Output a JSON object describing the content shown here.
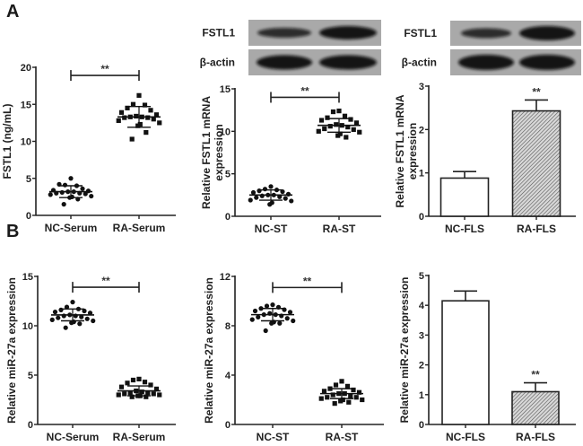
{
  "panels": [
    {
      "label": "A"
    },
    {
      "label": "B"
    }
  ],
  "blots": [
    {
      "rows": [
        "FSTL1",
        "β-actin"
      ]
    },
    {
      "rows": [
        "FSTL1",
        "β-actin"
      ]
    }
  ],
  "chart_data": [
    {
      "id": "A1",
      "type": "scatter",
      "ylabel": "FSTL1 (ng/mL)",
      "categories": [
        "NC-Serum",
        "RA-Serum"
      ],
      "ylim": [
        0,
        20
      ],
      "yticks": [
        0,
        5,
        10,
        15,
        20
      ],
      "series": [
        {
          "name": "NC-Serum",
          "marker": "circle",
          "mean": 3.2,
          "sd": 0.8,
          "values": [
            5.0,
            4.1,
            4.0,
            4.2,
            3.6,
            3.4,
            3.3,
            3.2,
            3.2,
            3.1,
            3.0,
            3.0,
            2.9,
            2.8,
            2.6,
            2.5,
            2.4,
            2.2,
            1.5
          ]
        },
        {
          "name": "RA-Serum",
          "marker": "square",
          "mean": 13.3,
          "sd": 1.4,
          "values": [
            16.2,
            15.0,
            14.9,
            14.5,
            14.2,
            13.9,
            13.6,
            13.4,
            13.3,
            13.3,
            13.2,
            13.2,
            13.0,
            12.8,
            12.5,
            12.3,
            12.1,
            11.2,
            10.3
          ]
        }
      ],
      "significance": "**",
      "sig_bracket_y": 18.9
    },
    {
      "id": "A2",
      "type": "scatter",
      "ylabel": [
        "Relative FSTL1 mRNA",
        "expression"
      ],
      "categories": [
        "NC-ST",
        "RA-ST"
      ],
      "ylim": [
        0,
        15
      ],
      "yticks": [
        0,
        5,
        10,
        15
      ],
      "series": [
        {
          "name": "NC-ST",
          "marker": "circle",
          "mean": 2.5,
          "sd": 0.6,
          "values": [
            3.5,
            3.2,
            3.1,
            3.0,
            2.9,
            2.8,
            2.6,
            2.5,
            2.5,
            2.4,
            2.3,
            2.2,
            2.1,
            1.9,
            1.8,
            1.6,
            1.4
          ]
        },
        {
          "name": "RA-ST",
          "marker": "square",
          "mean": 10.7,
          "sd": 0.8,
          "values": [
            12.4,
            12.3,
            11.8,
            11.6,
            11.4,
            11.3,
            11.0,
            10.8,
            10.7,
            10.6,
            10.5,
            10.3,
            10.2,
            10.0,
            9.9,
            9.7,
            9.5,
            9.3
          ]
        }
      ],
      "significance": "**",
      "sig_bracket_y": 14.0
    },
    {
      "id": "A3",
      "type": "bar",
      "ylabel": [
        "Relative FSTL1 mRNA",
        "expression"
      ],
      "categories": [
        "NC-FLS",
        "RA-FLS"
      ],
      "ylim": [
        0,
        3
      ],
      "yticks": [
        0,
        1,
        2,
        3
      ],
      "values": [
        0.88,
        2.43
      ],
      "errors": [
        0.15,
        0.25
      ],
      "fills": [
        "white",
        "hatched"
      ],
      "significance": [
        "",
        "**"
      ]
    },
    {
      "id": "B1",
      "type": "scatter",
      "ylabel": "Relative miR-27a expression",
      "categories": [
        "NC-Serum",
        "RA-Serum"
      ],
      "ylim": [
        0,
        15
      ],
      "yticks": [
        0,
        5,
        10,
        15
      ],
      "series": [
        {
          "name": "NC-Serum",
          "marker": "circle",
          "mean": 11.1,
          "sd": 0.6,
          "values": [
            12.4,
            11.9,
            11.7,
            11.6,
            11.5,
            11.4,
            11.3,
            11.1,
            11.0,
            11.0,
            10.9,
            10.8,
            10.7,
            10.6,
            10.5,
            10.4,
            10.3,
            10.2,
            9.8
          ]
        },
        {
          "name": "RA-Serum",
          "marker": "square",
          "mean": 3.4,
          "sd": 0.5,
          "values": [
            4.6,
            4.5,
            4.3,
            4.2,
            4.0,
            3.8,
            3.6,
            3.4,
            3.3,
            3.2,
            3.2,
            3.1,
            3.1,
            3.0,
            3.0,
            2.9,
            2.9,
            2.8,
            2.8
          ]
        }
      ],
      "significance": "**",
      "sig_bracket_y": 13.9
    },
    {
      "id": "B2",
      "type": "scatter",
      "ylabel": "Relative miR-27a expression",
      "categories": [
        "NC-ST",
        "RA-ST"
      ],
      "ylim": [
        0,
        12
      ],
      "yticks": [
        0,
        4,
        8,
        12
      ],
      "series": [
        {
          "name": "NC-ST",
          "marker": "circle",
          "mean": 8.9,
          "sd": 0.5,
          "values": [
            9.7,
            9.6,
            9.5,
            9.4,
            9.3,
            9.2,
            9.1,
            9.0,
            8.9,
            8.9,
            8.8,
            8.7,
            8.6,
            8.5,
            8.4,
            8.3,
            8.2,
            8.2,
            7.6
          ]
        },
        {
          "name": "RA-ST",
          "marker": "square",
          "mean": 2.5,
          "sd": 0.4,
          "values": [
            3.5,
            3.2,
            3.1,
            2.9,
            2.8,
            2.7,
            2.6,
            2.5,
            2.5,
            2.4,
            2.3,
            2.2,
            2.2,
            2.1,
            2.0,
            2.0,
            1.9,
            1.8,
            1.7
          ]
        }
      ],
      "significance": "**",
      "sig_bracket_y": 11.1
    },
    {
      "id": "B3",
      "type": "bar",
      "ylabel": "Relative miR-27a expression",
      "categories": [
        "NC-FLS",
        "RA-FLS"
      ],
      "ylim": [
        0,
        5
      ],
      "yticks": [
        0,
        1,
        2,
        3,
        4,
        5
      ],
      "values": [
        4.15,
        1.1
      ],
      "errors": [
        0.33,
        0.3
      ],
      "fills": [
        "white",
        "hatched"
      ],
      "significance": [
        "",
        "**"
      ]
    }
  ]
}
